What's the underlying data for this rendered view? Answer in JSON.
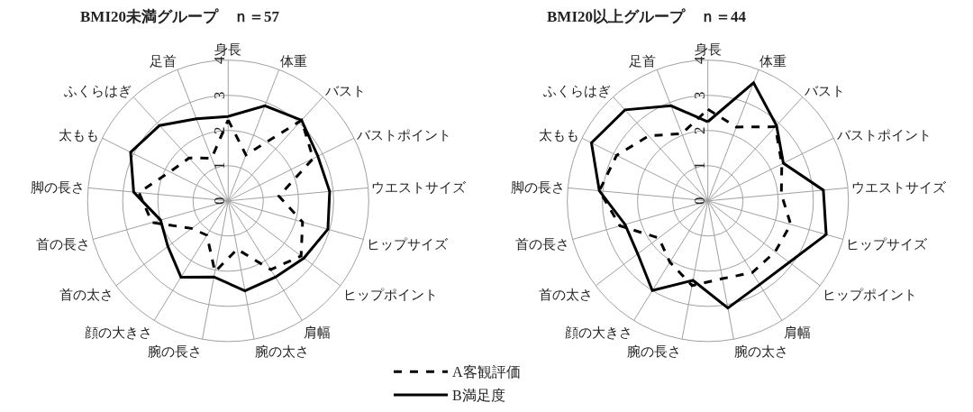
{
  "chart_data": [
    {
      "type": "radar",
      "title": "BMI20未満グループ　ｎ＝57",
      "categories": [
        "身長",
        "体重",
        "バスト",
        "バストポイント",
        "ウエストサイズ",
        "ヒップサイズ",
        "ヒップポイント",
        "肩幅",
        "腕の太さ",
        "腕の長さ",
        "顔の大きさ",
        "首の太さ",
        "首の長さ",
        "脚の長さ",
        "太もも",
        "ふくらはぎ",
        "足首"
      ],
      "ylim": [
        0,
        4
      ],
      "yticks": [
        0,
        1,
        2,
        3,
        4
      ],
      "grid": true,
      "legend": "bottom",
      "marker": "none",
      "series": [
        {
          "name": "A客観評価",
          "color": "#000000",
          "line_style": "dashed",
          "values": [
            2.3,
            1.4,
            3.1,
            2.7,
            1.45,
            2.2,
            2.6,
            2.3,
            1.4,
            2.05,
            1.15,
            1.3,
            2.25,
            2.55,
            1.85,
            1.65,
            1.3
          ]
        },
        {
          "name": "B満足度",
          "color": "#000000",
          "line_style": "solid",
          "values": [
            2.4,
            2.9,
            3.1,
            2.85,
            2.9,
            2.95,
            2.7,
            2.55,
            2.6,
            2.2,
            2.55,
            2.15,
            2.0,
            2.7,
            3.1,
            2.9,
            2.5
          ]
        }
      ]
    },
    {
      "type": "radar",
      "title": "BMI20以上グループ　ｎ＝44",
      "categories": [
        "身長",
        "体重",
        "バスト",
        "バストポイント",
        "ウエストサイズ",
        "ヒップサイズ",
        "ヒップポイント",
        "肩幅",
        "腕の太さ",
        "腕の長さ",
        "顔の大きさ",
        "首の太さ",
        "首の長さ",
        "脚の長さ",
        "太もも",
        "ふくらはぎ",
        "足首"
      ],
      "ylim": [
        0,
        4
      ],
      "yticks": [
        0,
        1,
        2,
        3,
        4
      ],
      "grid": true,
      "marker": "none",
      "series": [
        {
          "color": "#000000",
          "line_style": "dashed",
          "values": [
            2.6,
            2.25,
            2.85,
            2.35,
            2.1,
            2.45,
            2.4,
            2.4,
            2.25,
            2.45,
            2.05,
            1.75,
            2.6,
            3.1,
            2.9,
            2.5,
            2.05
          ]
        },
        {
          "color": "#000000",
          "line_style": "solid",
          "values": [
            2.25,
            3.6,
            2.9,
            2.4,
            3.3,
            3.5,
            2.9,
            2.8,
            3.1,
            2.3,
            3.0,
            2.5,
            2.45,
            3.1,
            3.7,
            3.5,
            2.9
          ]
        }
      ]
    }
  ]
}
